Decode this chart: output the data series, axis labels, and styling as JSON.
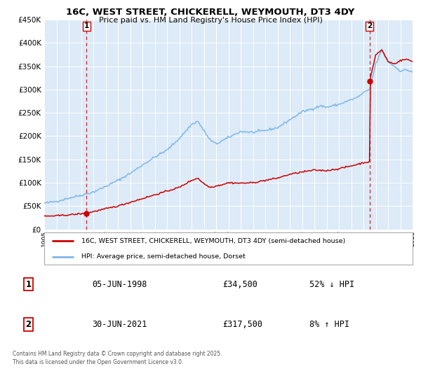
{
  "title": "16C, WEST STREET, CHICKERELL, WEYMOUTH, DT3 4DY",
  "subtitle": "Price paid vs. HM Land Registry's House Price Index (HPI)",
  "legend_property": "16C, WEST STREET, CHICKERELL, WEYMOUTH, DT3 4DY (semi-detached house)",
  "legend_hpi": "HPI: Average price, semi-detached house, Dorset",
  "transaction1_date": "05-JUN-1998",
  "transaction1_price": "£34,500",
  "transaction1_hpi": "52% ↓ HPI",
  "transaction2_date": "30-JUN-2021",
  "transaction2_price": "£317,500",
  "transaction2_hpi": "8% ↑ HPI",
  "footer": "Contains HM Land Registry data © Crown copyright and database right 2025.\nThis data is licensed under the Open Government Licence v3.0.",
  "ylim": [
    0,
    450000
  ],
  "yticks": [
    0,
    50000,
    100000,
    150000,
    200000,
    250000,
    300000,
    350000,
    400000,
    450000
  ],
  "bg_color": "#ddeaf7",
  "hpi_color": "#7cb8e8",
  "property_color": "#cc0000",
  "dashed_line_color": "#cc0000",
  "marker_color": "#cc0000",
  "transaction1_year": 1998.43,
  "transaction2_year": 2021.5,
  "hpi_key_years": [
    1995,
    1996,
    1997,
    1998,
    1999,
    2000,
    2001,
    2002,
    2003,
    2004,
    2005,
    2006,
    2007,
    2007.5,
    2008.5,
    2009,
    2009.5,
    2010,
    2011,
    2012,
    2013,
    2014,
    2015,
    2016,
    2017,
    2017.5,
    2018,
    2019,
    2020,
    2020.5,
    2021,
    2021.5,
    2022,
    2022.5,
    2023,
    2023.5,
    2024,
    2024.5,
    2025
  ],
  "hpi_key_vals": [
    56000,
    60000,
    67000,
    73000,
    80000,
    92000,
    105000,
    120000,
    138000,
    155000,
    170000,
    195000,
    225000,
    232000,
    192000,
    183000,
    190000,
    197000,
    210000,
    208000,
    212000,
    218000,
    235000,
    252000,
    260000,
    265000,
    262000,
    268000,
    278000,
    283000,
    293000,
    300000,
    355000,
    385000,
    360000,
    350000,
    340000,
    342000,
    338000
  ],
  "prop_key_years": [
    1995,
    1996,
    1997,
    1998.43,
    1999,
    2000,
    2001,
    2002,
    2003,
    2004,
    2005,
    2006,
    2007,
    2007.5,
    2008,
    2008.5,
    2009,
    2009.5,
    2010,
    2011,
    2012,
    2013,
    2014,
    2015,
    2016,
    2017,
    2018,
    2019,
    2020,
    2021.0,
    2021.499,
    2021.5,
    2022,
    2022.5,
    2023,
    2023.5,
    2024,
    2024.5,
    2025
  ],
  "prop_key_vals": [
    28000,
    29000,
    31000,
    34500,
    38000,
    44000,
    50000,
    58000,
    66000,
    74000,
    82000,
    90000,
    105000,
    110000,
    98000,
    90000,
    93000,
    96000,
    100000,
    99000,
    100000,
    105000,
    110000,
    118000,
    123000,
    127000,
    126000,
    130000,
    136000,
    143000,
    145000,
    317500,
    375000,
    385000,
    360000,
    355000,
    362000,
    365000,
    360000
  ]
}
